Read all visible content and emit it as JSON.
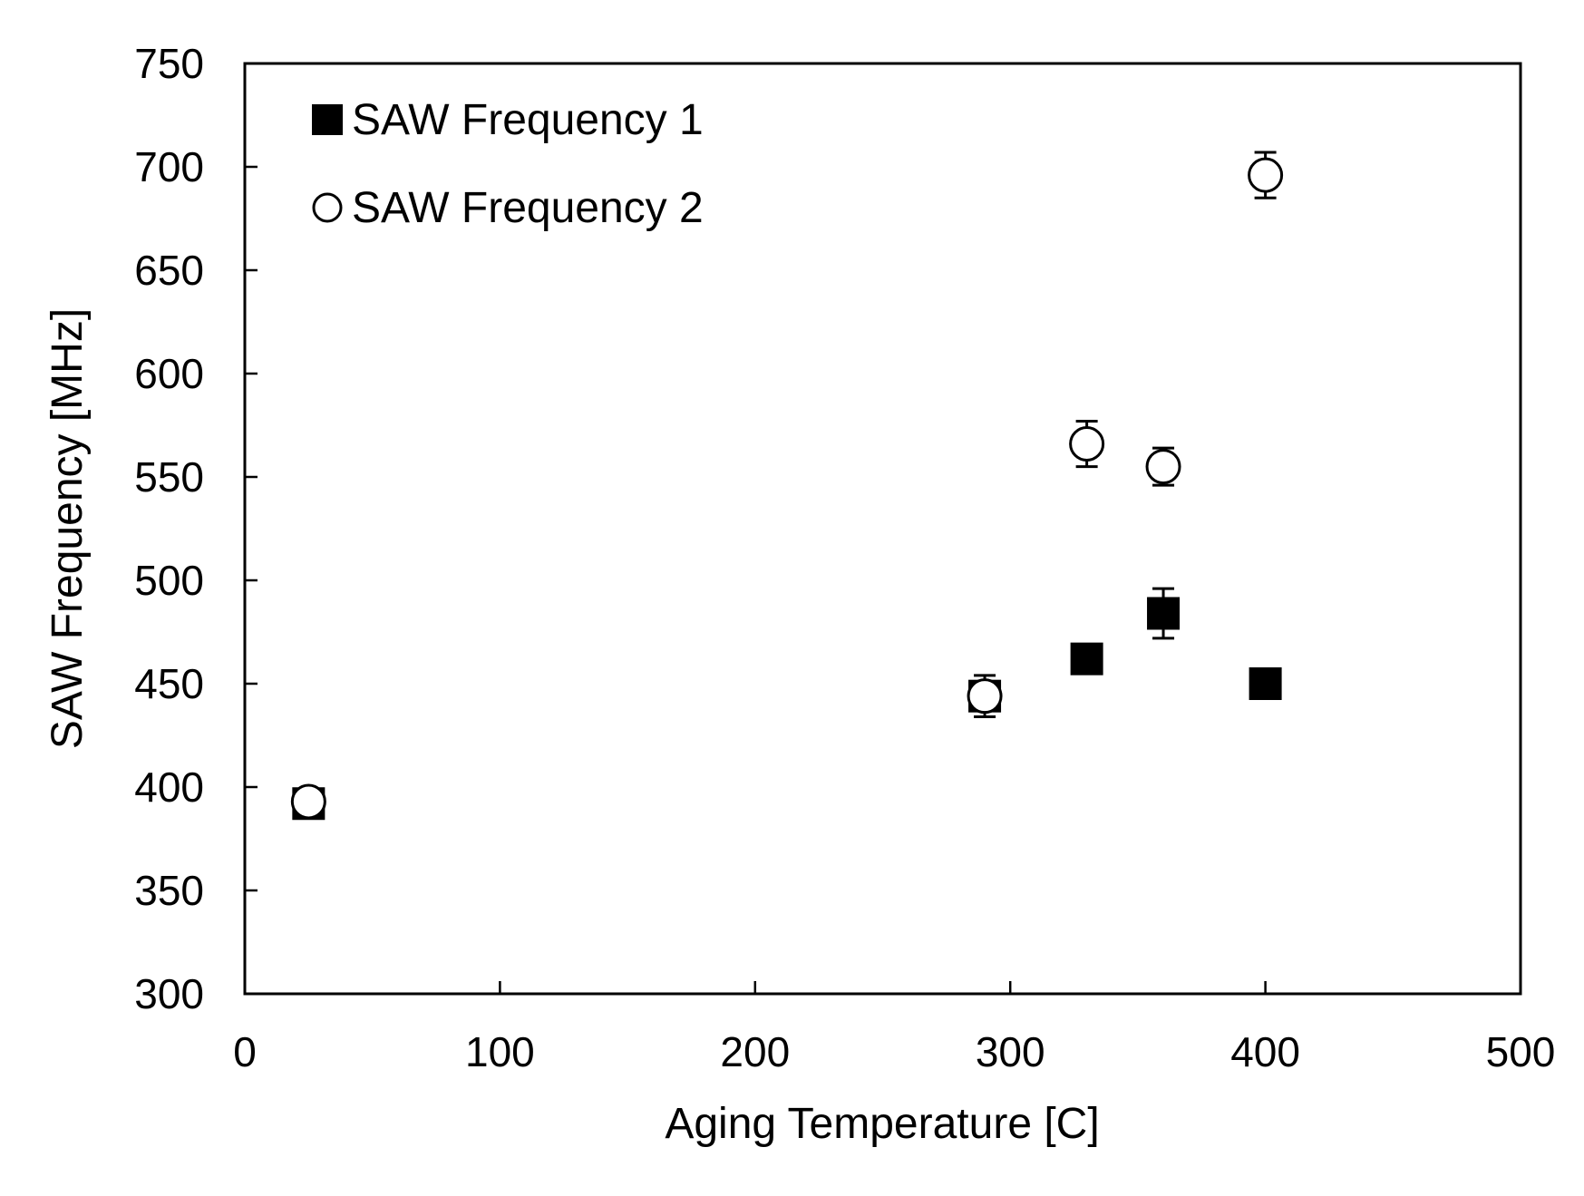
{
  "chart_data": {
    "type": "scatter",
    "title": "",
    "xlabel": "Aging Temperature [C]",
    "ylabel": "SAW Frequency [MHz]",
    "xlim": [
      0,
      500
    ],
    "ylim": [
      300,
      750
    ],
    "x_ticks": [
      0,
      100,
      200,
      300,
      400,
      500
    ],
    "y_ticks": [
      300,
      350,
      400,
      450,
      500,
      550,
      600,
      650,
      700,
      750
    ],
    "x_tick_labels": [
      "0",
      "100",
      "200",
      "300",
      "400",
      "500"
    ],
    "y_tick_labels": [
      "300",
      "350",
      "400",
      "450",
      "500",
      "550",
      "600",
      "650",
      "700",
      "750"
    ],
    "grid": false,
    "legend_position": "top-left",
    "series": [
      {
        "name": "SAW Frequency 1",
        "marker": "square-filled",
        "color": "#000000",
        "points": [
          {
            "x": 25,
            "y": 392,
            "err": 0
          },
          {
            "x": 290,
            "y": 444,
            "err": 6
          },
          {
            "x": 330,
            "y": 462,
            "err": 0
          },
          {
            "x": 360,
            "y": 484,
            "err": 12
          },
          {
            "x": 400,
            "y": 450,
            "err": 0
          }
        ]
      },
      {
        "name": "SAW Frequency 2",
        "marker": "circle-open",
        "color": "#000000",
        "points": [
          {
            "x": 25,
            "y": 393,
            "err": 0
          },
          {
            "x": 290,
            "y": 444,
            "err": 10
          },
          {
            "x": 330,
            "y": 566,
            "err": 11
          },
          {
            "x": 360,
            "y": 555,
            "err": 9
          },
          {
            "x": 400,
            "y": 696,
            "err": 11
          }
        ]
      }
    ]
  }
}
